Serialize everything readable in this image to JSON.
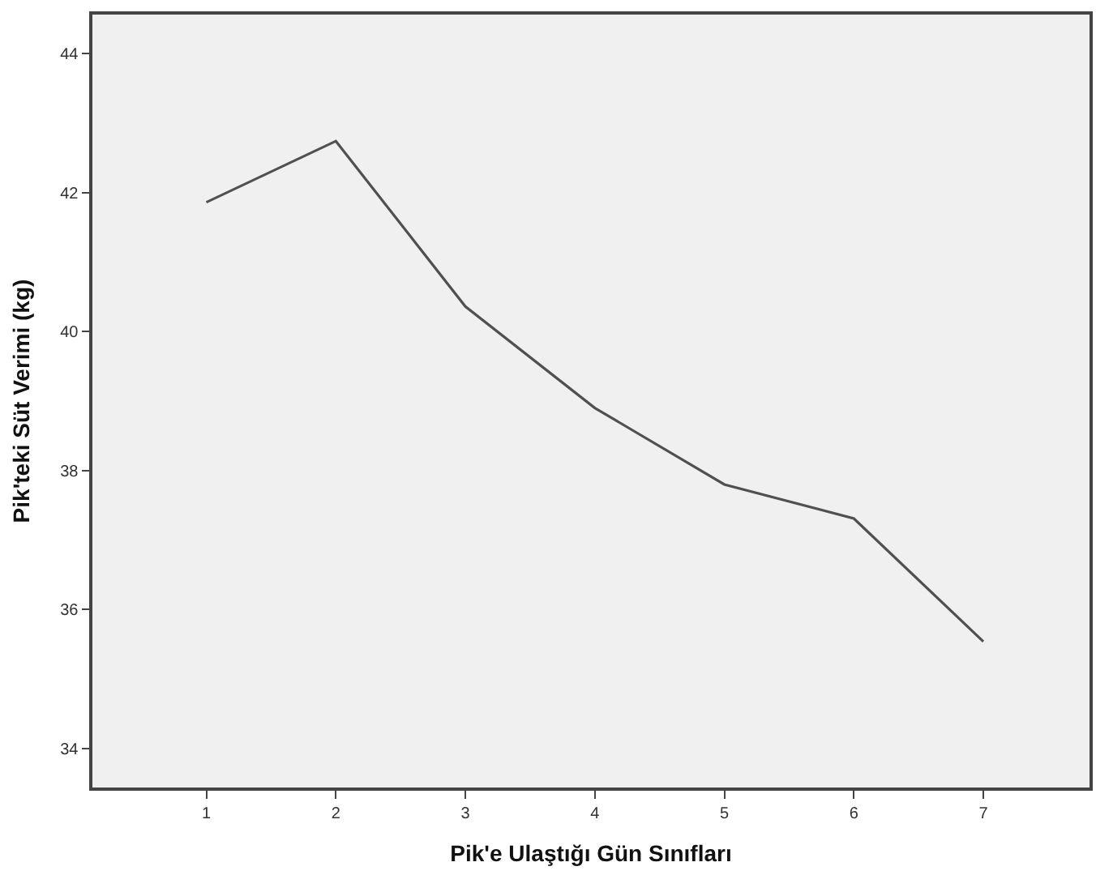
{
  "chart_data": {
    "type": "line",
    "xlabel": "Pik'e Ulaştığı Gün Sınıfları",
    "ylabel": "Pik'teki Süt Verimi (kg)",
    "x": [
      1,
      2,
      3,
      4,
      5,
      6,
      7
    ],
    "series": [
      {
        "color": "#505050",
        "values": [
          41.86,
          42.74,
          40.36,
          38.9,
          37.8,
          37.31,
          35.54
        ]
      }
    ],
    "xlim": [
      0.12,
      7.82
    ],
    "xticks": [
      1,
      2,
      3,
      4,
      5,
      6,
      7
    ],
    "ylim": [
      33.44,
      44.56
    ],
    "yticks": [
      34,
      36,
      38,
      40,
      42,
      44
    ],
    "grid": false,
    "marker": "none",
    "line_style": "solid"
  }
}
